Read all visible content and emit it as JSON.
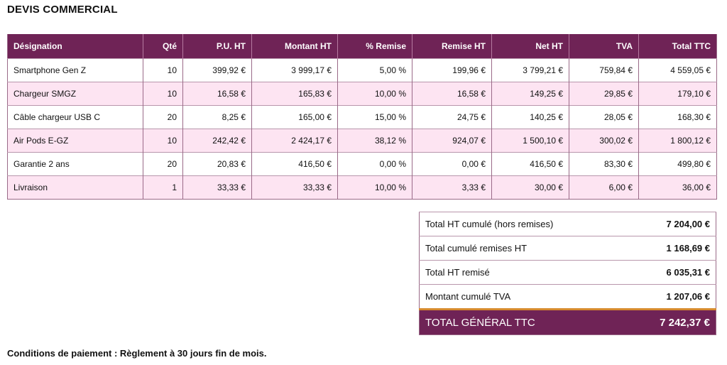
{
  "title": "DEVIS COMMERCIAL",
  "table": {
    "headers": [
      "Désignation",
      "Qté",
      "P.U. HT",
      "Montant HT",
      "% Remise",
      "Remise HT",
      "Net HT",
      "TVA",
      "Total TTC"
    ],
    "rows": [
      [
        "Smartphone Gen Z",
        "10",
        "399,92 €",
        "3 999,17 €",
        "5,00 %",
        "199,96 €",
        "3 799,21 €",
        "759,84 €",
        "4 559,05 €"
      ],
      [
        "Chargeur SMGZ",
        "10",
        "16,58 €",
        "165,83 €",
        "10,00 %",
        "16,58 €",
        "149,25 €",
        "29,85 €",
        "179,10 €"
      ],
      [
        "Câble chargeur USB C",
        "20",
        "8,25 €",
        "165,00 €",
        "15,00 %",
        "24,75 €",
        "140,25 €",
        "28,05 €",
        "168,30 €"
      ],
      [
        "Air Pods E-GZ",
        "10",
        "242,42 €",
        "2 424,17 €",
        "38,12 %",
        "924,07 €",
        "1 500,10 €",
        "300,02 €",
        "1 800,12 €"
      ],
      [
        "Garantie 2 ans",
        "20",
        "20,83 €",
        "416,50 €",
        "0,00 %",
        "0,00 €",
        "416,50 €",
        "83,30 €",
        "499,80 €"
      ],
      [
        "Livraison",
        "1",
        "33,33 €",
        "33,33 €",
        "10,00 %",
        "3,33 €",
        "30,00 €",
        "6,00 €",
        "36,00 €"
      ]
    ]
  },
  "totals": [
    {
      "label": "Total HT cumulé (hors remises)",
      "value": "7 204,00 €"
    },
    {
      "label": "Total cumulé remises HT",
      "value": "1 168,69 €"
    },
    {
      "label": "Total HT remisé",
      "value": "6 035,31 €"
    },
    {
      "label": "Montant cumulé TVA",
      "value": "1 207,06 €"
    }
  ],
  "grand_total": {
    "label": "TOTAL GÉNÉRAL TTC",
    "value": "7 242,37 €"
  },
  "conditions": "Conditions de paiement : Règlement à 30 jours fin de mois.",
  "colors": {
    "header": "#6f2356",
    "stripe": "#fde4f2",
    "accent_line": "#d68a2e"
  }
}
